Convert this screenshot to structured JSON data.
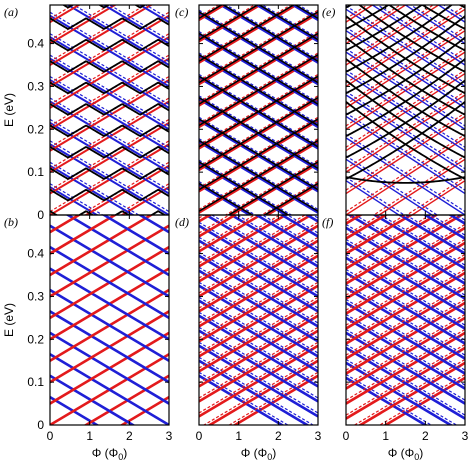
{
  "chart_data": {
    "type": "line",
    "xlabel": "Φ (Φ0)",
    "ylabel": "E (eV)",
    "x_ticks": [
      0,
      1,
      2,
      3
    ],
    "y_ticks": [
      0,
      0.1,
      0.2,
      0.3,
      0.4
    ],
    "y_tick_labels": [
      "0",
      "0.1",
      "0.2",
      "0.3",
      "0.4"
    ],
    "xlim": [
      0,
      3
    ],
    "ylim": [
      0,
      0.49
    ],
    "colors": {
      "red": "#e31a1c",
      "blue": "#1f1fd6",
      "black": "#000000"
    },
    "panels": [
      {
        "label": "(a)",
        "row": 0,
        "col": 0,
        "style": "gapped",
        "spacing": 0.05,
        "slope": 0.055,
        "gap": 0.009,
        "ymin": 0
      },
      {
        "label": "(c)",
        "row": 0,
        "col": 1,
        "style": "crossing",
        "spacing": 0.05,
        "slope": 0.055,
        "ymin": 0.005
      },
      {
        "label": "(e)",
        "row": 0,
        "col": 2,
        "style": "parabola",
        "spacing": 0.05,
        "slope": 0.06,
        "ymin": 0.075
      },
      {
        "label": "(b)",
        "row": 1,
        "col": 0,
        "style": "diamond",
        "spacing": 0.05,
        "slope": 0.055,
        "ymin": 0
      },
      {
        "label": "(d)",
        "row": 1,
        "col": 1,
        "style": "diamond",
        "spacing": 0.035,
        "slope": 0.055,
        "ymin": 0.02
      },
      {
        "label": "(f)",
        "row": 1,
        "col": 2,
        "style": "diamond",
        "spacing": 0.035,
        "slope": 0.055,
        "ymin": 0.015
      }
    ]
  }
}
